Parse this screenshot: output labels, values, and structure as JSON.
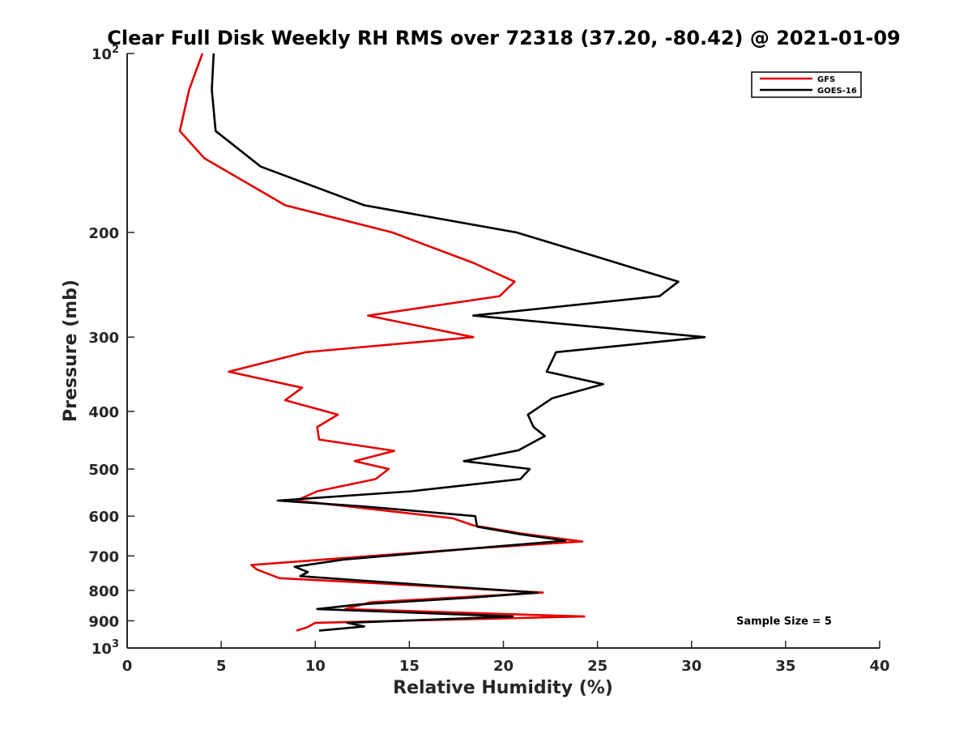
{
  "chart_data": {
    "type": "line",
    "title": "Clear Full Disk Weekly RH RMS over 72318 (37.20, -80.42) @ 2021-01-09",
    "xlabel": "Relative Humidity (%)",
    "ylabel": "Pressure (mb)",
    "xlim": [
      0,
      40
    ],
    "ylim": [
      100,
      1000
    ],
    "yscale": "log",
    "y_reversed": true,
    "grid": false,
    "legend_position": "top-right",
    "x_ticks": [
      "0",
      "5",
      "10",
      "15",
      "20",
      "25",
      "30",
      "35",
      "40"
    ],
    "y_ticks": [
      {
        "value": 100,
        "label": "10",
        "sup": "2"
      },
      {
        "value": 200,
        "label": "200",
        "sup": ""
      },
      {
        "value": 300,
        "label": "300",
        "sup": ""
      },
      {
        "value": 400,
        "label": "400",
        "sup": ""
      },
      {
        "value": 500,
        "label": "500",
        "sup": ""
      },
      {
        "value": 600,
        "label": "600",
        "sup": ""
      },
      {
        "value": 700,
        "label": "700",
        "sup": ""
      },
      {
        "value": 800,
        "label": "800",
        "sup": ""
      },
      {
        "value": 900,
        "label": "900",
        "sup": ""
      },
      {
        "value": 1000,
        "label": "10",
        "sup": "3"
      }
    ],
    "annotation": "Sample Size = 5",
    "series": [
      {
        "name": "GFS",
        "color": "#e30000",
        "points": [
          [
            4.0,
            100
          ],
          [
            3.3,
            115
          ],
          [
            2.8,
            135
          ],
          [
            4.1,
            150
          ],
          [
            8.4,
            180
          ],
          [
            14.1,
            200
          ],
          [
            18.4,
            225
          ],
          [
            20.6,
            242
          ],
          [
            19.8,
            256
          ],
          [
            12.8,
            276
          ],
          [
            18.4,
            300
          ],
          [
            9.5,
            318
          ],
          [
            5.4,
            343
          ],
          [
            9.3,
            365
          ],
          [
            8.4,
            383
          ],
          [
            11.2,
            405
          ],
          [
            10.1,
            425
          ],
          [
            10.2,
            446
          ],
          [
            14.2,
            466
          ],
          [
            12.1,
            485
          ],
          [
            13.9,
            500
          ],
          [
            13.2,
            520
          ],
          [
            10.1,
            545
          ],
          [
            9.0,
            565
          ],
          [
            11.8,
            578
          ],
          [
            17.3,
            605
          ],
          [
            18.4,
            622
          ],
          [
            21.1,
            643
          ],
          [
            24.2,
            662
          ],
          [
            18.4,
            680
          ],
          [
            6.6,
            725
          ],
          [
            6.9,
            738
          ],
          [
            8.1,
            763
          ],
          [
            13.2,
            778
          ],
          [
            22.1,
            807
          ],
          [
            12.9,
            838
          ],
          [
            11.6,
            860
          ],
          [
            24.3,
            885
          ],
          [
            10.0,
            907
          ],
          [
            9.6,
            922
          ],
          [
            9.0,
            935
          ]
        ]
      },
      {
        "name": "GOES-16",
        "color": "#000000",
        "points": [
          [
            4.6,
            100
          ],
          [
            4.5,
            115
          ],
          [
            4.7,
            135
          ],
          [
            7.1,
            155
          ],
          [
            12.6,
            180
          ],
          [
            20.7,
            200
          ],
          [
            25.0,
            220
          ],
          [
            29.3,
            242
          ],
          [
            28.3,
            256
          ],
          [
            18.4,
            276
          ],
          [
            30.7,
            300
          ],
          [
            22.8,
            318
          ],
          [
            22.3,
            343
          ],
          [
            25.3,
            360
          ],
          [
            22.6,
            380
          ],
          [
            21.3,
            405
          ],
          [
            21.6,
            425
          ],
          [
            22.2,
            440
          ],
          [
            20.8,
            465
          ],
          [
            17.9,
            485
          ],
          [
            21.4,
            500
          ],
          [
            20.9,
            520
          ],
          [
            15.1,
            545
          ],
          [
            8.0,
            565
          ],
          [
            12.6,
            578
          ],
          [
            18.5,
            600
          ],
          [
            18.6,
            625
          ],
          [
            20.8,
            643
          ],
          [
            23.3,
            660
          ],
          [
            18.4,
            680
          ],
          [
            11.5,
            710
          ],
          [
            8.9,
            730
          ],
          [
            9.6,
            745
          ],
          [
            9.2,
            757
          ],
          [
            12.4,
            770
          ],
          [
            21.8,
            807
          ],
          [
            18.5,
            822
          ],
          [
            12.3,
            845
          ],
          [
            10.1,
            860
          ],
          [
            20.5,
            885
          ],
          [
            11.7,
            907
          ],
          [
            12.6,
            920
          ],
          [
            10.2,
            935
          ]
        ]
      }
    ]
  }
}
